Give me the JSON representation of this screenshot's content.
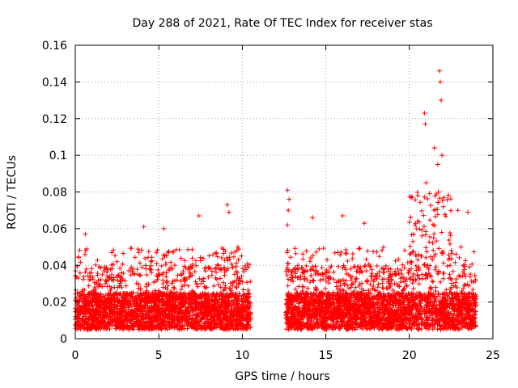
{
  "chart_data": {
    "type": "scatter",
    "title": "Day 288 of 2021, Rate Of TEC Index for receiver stas",
    "xlabel": "GPS time / hours",
    "ylabel": "ROTI / TECUs",
    "xlim": [
      0,
      25
    ],
    "ylim": [
      0,
      0.16
    ],
    "xticks": [
      0,
      5,
      10,
      15,
      20,
      25
    ],
    "yticks": [
      0,
      0.02,
      0.04,
      0.06,
      0.08,
      0.1,
      0.12,
      0.14,
      0.16
    ],
    "xtick_labels": [
      "0",
      "5",
      "10",
      "15",
      "20",
      "25"
    ],
    "ytick_labels": [
      "0",
      "0.02",
      "0.04",
      "0.06",
      "0.08",
      "0.1",
      "0.12",
      "0.14",
      "0.16"
    ],
    "grid": true,
    "marker": "+",
    "series": [
      {
        "name": "ROTI",
        "color": "#ff0000",
        "data_gap_hours": [
          10.5,
          12.6
        ],
        "notable_points": [
          {
            "x": 0.6,
            "y": 0.057
          },
          {
            "x": 4.1,
            "y": 0.061
          },
          {
            "x": 5.3,
            "y": 0.06
          },
          {
            "x": 7.4,
            "y": 0.067
          },
          {
            "x": 9.1,
            "y": 0.073
          },
          {
            "x": 9.2,
            "y": 0.069
          },
          {
            "x": 12.7,
            "y": 0.081
          },
          {
            "x": 12.8,
            "y": 0.076
          },
          {
            "x": 12.75,
            "y": 0.07
          },
          {
            "x": 12.7,
            "y": 0.062
          },
          {
            "x": 14.2,
            "y": 0.066
          },
          {
            "x": 16.0,
            "y": 0.067
          },
          {
            "x": 17.3,
            "y": 0.063
          },
          {
            "x": 20.5,
            "y": 0.078
          },
          {
            "x": 20.9,
            "y": 0.123
          },
          {
            "x": 20.95,
            "y": 0.117
          },
          {
            "x": 21.0,
            "y": 0.085
          },
          {
            "x": 21.5,
            "y": 0.104
          },
          {
            "x": 21.8,
            "y": 0.146
          },
          {
            "x": 21.85,
            "y": 0.14
          },
          {
            "x": 21.9,
            "y": 0.13
          },
          {
            "x": 21.95,
            "y": 0.1
          },
          {
            "x": 21.7,
            "y": 0.095
          },
          {
            "x": 22.9,
            "y": 0.07
          },
          {
            "x": 23.5,
            "y": 0.069
          }
        ],
        "baseline_range": [
          0.005,
          0.03
        ]
      }
    ]
  }
}
